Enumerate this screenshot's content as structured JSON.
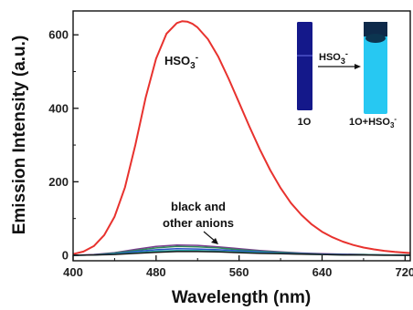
{
  "chart_data": {
    "type": "line",
    "xlabel": "Wavelength (nm)",
    "ylabel": "Emission Intensity (a.u.)",
    "xlim": [
      400,
      725
    ],
    "ylim": [
      -15,
      665
    ],
    "xticks": [
      400,
      480,
      560,
      640,
      720
    ],
    "yticks": [
      0,
      200,
      400,
      600
    ],
    "series": [
      {
        "color": "#e8322e",
        "x": [
          400,
          410,
          420,
          430,
          440,
          450,
          460,
          470,
          480,
          490,
          500,
          505,
          510,
          515,
          520,
          530,
          540,
          550,
          560,
          570,
          580,
          590,
          600,
          610,
          620,
          630,
          640,
          650,
          660,
          670,
          680,
          690,
          700,
          710,
          720,
          725
        ],
        "y": [
          3,
          10,
          25,
          55,
          105,
          185,
          300,
          430,
          535,
          603,
          632,
          637,
          636,
          630,
          620,
          588,
          540,
          480,
          415,
          350,
          288,
          232,
          183,
          142,
          110,
          84,
          64,
          49,
          37,
          28,
          21,
          16,
          12,
          9,
          7,
          6
        ]
      },
      {
        "color": "#7a3b8f",
        "x": [
          400,
          420,
          440,
          460,
          480,
          500,
          520,
          540,
          560,
          580,
          600,
          620,
          640,
          660,
          680,
          700,
          720,
          725
        ],
        "y": [
          0,
          2,
          7,
          16,
          24,
          28,
          27,
          23,
          18,
          13,
          9,
          6,
          4,
          3,
          2,
          1,
          1,
          1
        ]
      },
      {
        "color": "#2e8b57",
        "x": [
          400,
          420,
          440,
          460,
          480,
          500,
          520,
          540,
          560,
          580,
          600,
          620,
          640,
          660,
          680,
          700,
          720,
          725
        ],
        "y": [
          0,
          1,
          6,
          13,
          20,
          24,
          23,
          20,
          15,
          11,
          8,
          5,
          3,
          2,
          2,
          1,
          1,
          1
        ]
      },
      {
        "color": "#2b4fc7",
        "x": [
          400,
          420,
          440,
          460,
          480,
          500,
          520,
          540,
          560,
          580,
          600,
          620,
          640,
          660,
          680,
          700,
          720,
          725
        ],
        "y": [
          0,
          1,
          4,
          10,
          15,
          18,
          17,
          15,
          12,
          9,
          6,
          4,
          3,
          2,
          1,
          1,
          0,
          0
        ]
      },
      {
        "color": "#2aa7a7",
        "x": [
          400,
          420,
          440,
          460,
          480,
          500,
          520,
          540,
          560,
          580,
          600,
          620,
          640,
          660,
          680,
          700,
          720,
          725
        ],
        "y": [
          0,
          1,
          3,
          7,
          11,
          13,
          13,
          11,
          9,
          7,
          5,
          3,
          2,
          1,
          1,
          1,
          0,
          0
        ]
      },
      {
        "color": "#1a1a1a",
        "x": [
          400,
          420,
          440,
          460,
          480,
          500,
          520,
          540,
          560,
          580,
          600,
          620,
          640,
          660,
          680,
          700,
          720,
          725
        ],
        "y": [
          0,
          1,
          2,
          5,
          8,
          10,
          10,
          9,
          7,
          5,
          4,
          3,
          2,
          1,
          1,
          0,
          0,
          0
        ]
      }
    ],
    "annotations": {
      "hso3_label": "HSO",
      "hso3_sub": "3",
      "hso3_sup": "-",
      "black_line1": "black and",
      "black_line2": "other anions"
    },
    "inset": {
      "left_label": "1O",
      "right_label_main": "1O+HSO",
      "right_label_sub": "3",
      "right_label_sup": "-",
      "arrow_label": "HSO",
      "arrow_label_sub": "3",
      "arrow_label_sup": "-",
      "left_vial_color": "#14188a",
      "right_vial_color": "#27c8f2"
    }
  }
}
